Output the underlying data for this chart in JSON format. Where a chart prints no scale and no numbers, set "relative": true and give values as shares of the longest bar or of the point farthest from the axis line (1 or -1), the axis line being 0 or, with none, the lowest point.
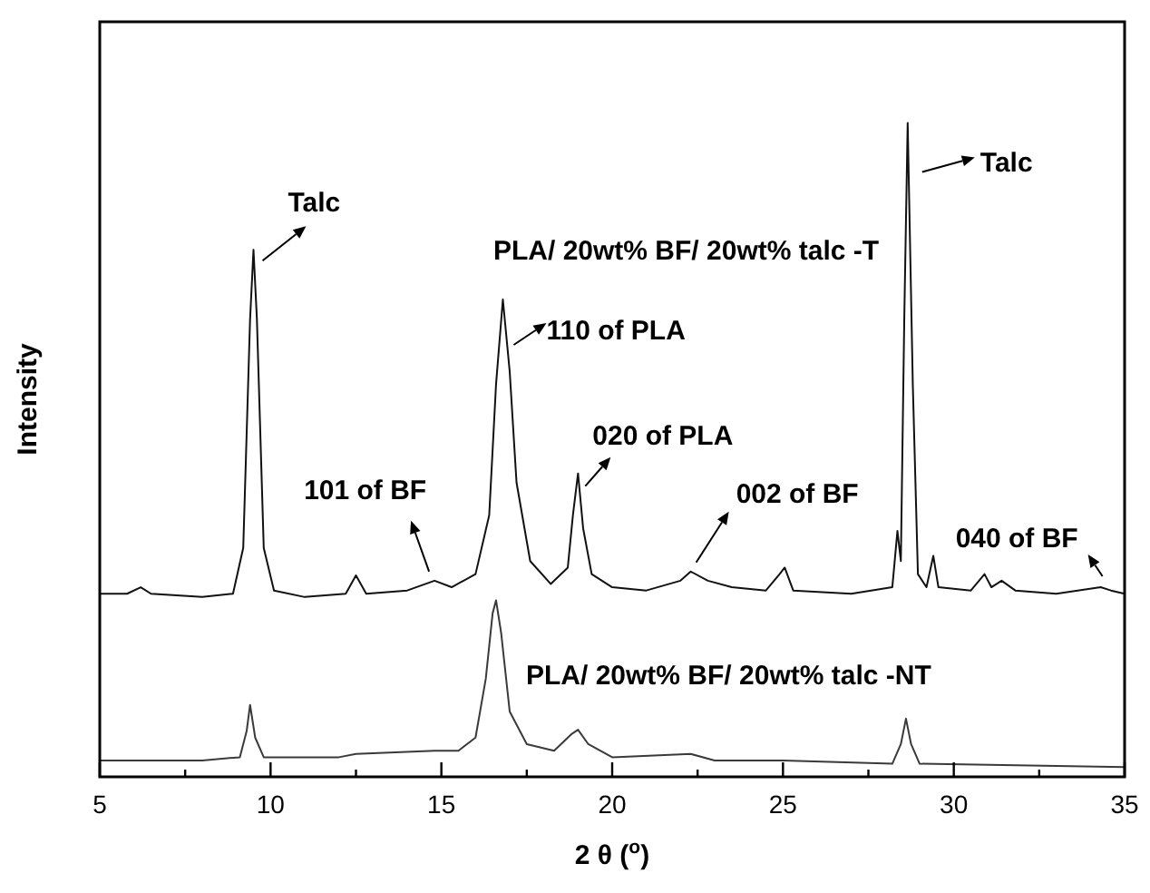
{
  "chart_data": {
    "type": "line",
    "relative": true,
    "xlabel": "2 θ ($^{o}$)",
    "ylabel": "Intensity",
    "xlim": [
      5,
      35
    ],
    "xticks": [
      5,
      {
        "value": 7.5,
        "label": null
      },
      10,
      {
        "value": 12.5,
        "label": null
      },
      15,
      {
        "value": 17.5,
        "label": null
      },
      20,
      {
        "value": 22.5,
        "label": null
      },
      25,
      {
        "value": 27.5,
        "label": null
      },
      30,
      {
        "value": 32.5,
        "label": null
      },
      35
    ],
    "grid": false,
    "marker": "none",
    "line_style": "solid",
    "series": [
      {
        "name": "PLA/ 20wt% BF/ 20wt% talc -T",
        "color": "#111111",
        "x": [
          5,
          5.8,
          6.2,
          6.5,
          8,
          8.9,
          9.2,
          9.4,
          9.5,
          9.6,
          9.8,
          10.1,
          11,
          12.2,
          12.5,
          12.8,
          14,
          14.8,
          15.3,
          16,
          16.4,
          16.6,
          16.8,
          17,
          17.2,
          17.6,
          18.2,
          18.7,
          18.85,
          19,
          19.15,
          19.4,
          20,
          21,
          22,
          22.3,
          22.8,
          23.5,
          24.5,
          24.9,
          25.05,
          25.3,
          27,
          28.2,
          28.35,
          28.45,
          28.55,
          28.65,
          28.8,
          28.95,
          29.2,
          29.4,
          29.55,
          30.5,
          30.9,
          31.1,
          31.4,
          31.8,
          33,
          34.3,
          34.6,
          35
        ],
        "values": [
          0.28,
          0.28,
          0.29,
          0.28,
          0.275,
          0.28,
          0.35,
          0.7,
          0.806,
          0.7,
          0.35,
          0.285,
          0.275,
          0.28,
          0.308,
          0.28,
          0.285,
          0.3,
          0.29,
          0.31,
          0.4,
          0.6,
          0.73,
          0.62,
          0.45,
          0.33,
          0.295,
          0.32,
          0.4,
          0.464,
          0.38,
          0.31,
          0.29,
          0.285,
          0.3,
          0.314,
          0.3,
          0.29,
          0.285,
          0.31,
          0.32,
          0.285,
          0.28,
          0.29,
          0.376,
          0.33,
          0.7,
          1,
          0.6,
          0.31,
          0.29,
          0.338,
          0.29,
          0.285,
          0.31,
          0.29,
          0.3,
          0.285,
          0.28,
          0.29,
          0.285,
          0.28
        ]
      },
      {
        "name": "PLA/ 20wt% BF/ 20wt% talc -NT",
        "color": "#3a3a3a",
        "x": [
          5,
          8,
          9.1,
          9.3,
          9.4,
          9.55,
          9.8,
          12,
          12.5,
          14.8,
          15.5,
          16,
          16.3,
          16.5,
          16.6,
          16.75,
          17,
          17.5,
          18.3,
          18.8,
          19,
          19.3,
          20,
          22.3,
          23,
          25,
          28.2,
          28.45,
          28.6,
          28.75,
          29,
          35
        ],
        "values": [
          0.025,
          0.025,
          0.03,
          0.07,
          0.11,
          0.06,
          0.03,
          0.03,
          0.035,
          0.04,
          0.04,
          0.06,
          0.15,
          0.25,
          0.27,
          0.22,
          0.1,
          0.05,
          0.04,
          0.065,
          0.072,
          0.05,
          0.03,
          0.035,
          0.025,
          0.025,
          0.02,
          0.05,
          0.089,
          0.05,
          0.02,
          0.015
        ]
      }
    ],
    "annotations": [
      {
        "text": "Talc",
        "x": 9.5,
        "y": 0.806
      },
      {
        "text": "110 of PLA",
        "x": 16.8,
        "y": 0.73
      },
      {
        "text": "020 of PLA",
        "x": 19,
        "y": 0.464
      },
      {
        "text": "101 of BF",
        "x": 14.8,
        "y": 0.3
      },
      {
        "text": "002 of BF",
        "x": 22.3,
        "y": 0.314
      },
      {
        "text": "Talc",
        "x": 28.65,
        "y": 1
      },
      {
        "text": "040 of BF",
        "x": 34.3,
        "y": 0.29
      }
    ]
  }
}
